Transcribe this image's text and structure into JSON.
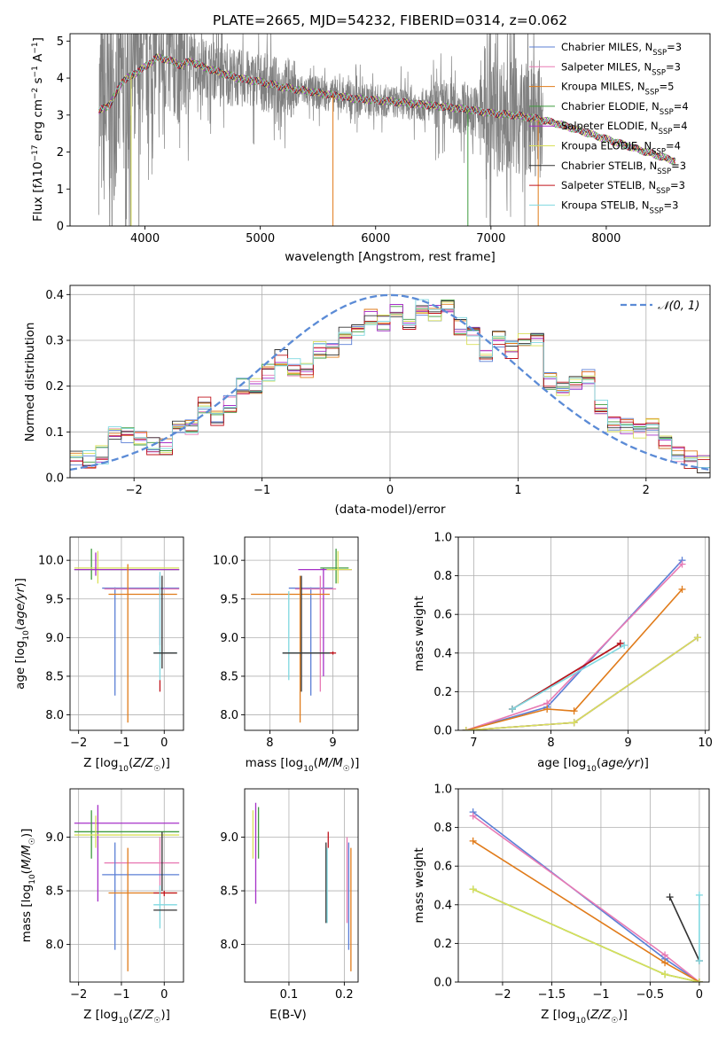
{
  "chart_data": [
    {
      "id": "spectrum",
      "type": "line",
      "title": "PLATE=2665, MJD=54232, FIBERID=0314, z=0.062",
      "xlabel": "wavelength [Angstrom, rest frame]",
      "ylabel": "Flux [f_λ 10^-17 erg cm^-2 s^-1 A^-1]",
      "xlim": [
        3350,
        8900
      ],
      "ylim": [
        0,
        5.2
      ],
      "xticks": [
        4000,
        5000,
        6000,
        7000,
        8000
      ],
      "yticks": [
        0,
        1,
        2,
        3,
        4,
        5
      ],
      "grid": false,
      "legend_position": "upper-right",
      "legend": [
        {
          "label": "Chabrier MILES, N",
          "sub": "SSP",
          "suffix": "=3",
          "color": "#5b7fd6"
        },
        {
          "label": "Salpeter MILES, N",
          "sub": "SSP",
          "suffix": "=3",
          "color": "#e87ab4"
        },
        {
          "label": "Kroupa MILES, N",
          "sub": "SSP",
          "suffix": "=5",
          "color": "#e07b1a"
        },
        {
          "label": "Chabrier ELODIE, N",
          "sub": "SSP",
          "suffix": "=4",
          "color": "#3e9b3e"
        },
        {
          "label": "Salpeter ELODIE, N",
          "sub": "SSP",
          "suffix": "=4",
          "color": "#a630c8"
        },
        {
          "label": "Kroupa ELODIE, N",
          "sub": "SSP",
          "suffix": "=4",
          "color": "#d9e05a"
        },
        {
          "label": "Chabrier STELIB, N",
          "sub": "SSP",
          "suffix": "=3",
          "color": "#333333"
        },
        {
          "label": "Salpeter STELIB, N",
          "sub": "SSP",
          "suffix": "=3",
          "color": "#c0141c"
        },
        {
          "label": "Kroupa STELIB, N",
          "sub": "SSP",
          "suffix": "=3",
          "color": "#7fd8e0"
        }
      ],
      "data_color": "#808080",
      "model_continuum": {
        "x": [
          3600,
          3700,
          3800,
          3900,
          4000,
          4100,
          4200,
          4300,
          4400,
          4500,
          4600,
          4800,
          5000,
          5200,
          5400,
          5600,
          5800,
          6000,
          6200,
          6400,
          6600,
          6800,
          7000,
          7200,
          7400,
          7600,
          7800,
          8000,
          8200,
          8400,
          8600
        ],
        "y": [
          3.1,
          3.3,
          3.9,
          4.1,
          4.3,
          4.55,
          4.5,
          4.35,
          4.45,
          4.3,
          4.2,
          4.0,
          3.9,
          3.75,
          3.65,
          3.55,
          3.45,
          3.4,
          3.35,
          3.28,
          3.22,
          3.15,
          3.05,
          3.0,
          2.9,
          2.75,
          2.55,
          2.35,
          2.15,
          1.95,
          1.75
        ]
      }
    },
    {
      "id": "residuals",
      "type": "line",
      "xlabel": "(data-model)/error",
      "ylabel": "Normed distribution",
      "xlim": [
        -2.5,
        2.5
      ],
      "ylim": [
        0,
        0.42
      ],
      "xticks": [
        -2,
        -1,
        0,
        1,
        2
      ],
      "yticks": [
        0.0,
        0.1,
        0.2,
        0.3,
        0.4
      ],
      "grid": true,
      "legend_position": "upper-right",
      "legend_label": "𝒩(0, 1)",
      "gauss_color": "#5b8bd6",
      "hist_x": [
        -2.5,
        -2.4,
        -2.3,
        -2.2,
        -2.1,
        -2.0,
        -1.9,
        -1.8,
        -1.7,
        -1.6,
        -1.5,
        -1.4,
        -1.3,
        -1.2,
        -1.1,
        -1.0,
        -0.9,
        -0.8,
        -0.7,
        -0.6,
        -0.5,
        -0.4,
        -0.3,
        -0.2,
        -0.1,
        0.0,
        0.1,
        0.2,
        0.3,
        0.4,
        0.5,
        0.6,
        0.7,
        0.8,
        0.9,
        1.0,
        1.1,
        1.2,
        1.3,
        1.4,
        1.5,
        1.6,
        1.7,
        1.8,
        1.9,
        2.0,
        2.1,
        2.2,
        2.3,
        2.4
      ],
      "hist_y": [
        0.04,
        0.04,
        0.05,
        0.1,
        0.09,
        0.09,
        0.07,
        0.07,
        0.11,
        0.11,
        0.16,
        0.13,
        0.16,
        0.2,
        0.2,
        0.23,
        0.26,
        0.24,
        0.23,
        0.28,
        0.28,
        0.31,
        0.33,
        0.35,
        0.34,
        0.36,
        0.34,
        0.37,
        0.36,
        0.38,
        0.33,
        0.31,
        0.27,
        0.3,
        0.28,
        0.3,
        0.3,
        0.21,
        0.19,
        0.21,
        0.22,
        0.15,
        0.12,
        0.11,
        0.1,
        0.11,
        0.08,
        0.05,
        0.04,
        0.03
      ]
    },
    {
      "id": "age_vs_Z",
      "type": "scatter",
      "xlabel": "Z [log10(Z/Z☉)]",
      "ylabel": "age  [log10(age/yr)]",
      "xlim": [
        -2.2,
        0.45
      ],
      "ylim": [
        7.8,
        10.3
      ],
      "xticks": [
        -2,
        -1,
        0
      ],
      "yticks": [
        8.0,
        8.5,
        9.0,
        9.5,
        10.0
      ],
      "grid": true
    },
    {
      "id": "age_vs_mass",
      "type": "scatter",
      "xlabel": "mass [log10(M/M☉)]",
      "ylabel": "",
      "xlim": [
        7.6,
        9.4
      ],
      "ylim": [
        7.8,
        10.3
      ],
      "xticks": [
        8,
        9
      ],
      "yticks": [
        8.0,
        8.5,
        9.0,
        9.5,
        10.0
      ],
      "grid": true
    },
    {
      "id": "massweight_vs_age",
      "type": "line",
      "xlabel": "age  [log10(age/yr)]",
      "ylabel": "mass weight",
      "xlim": [
        6.8,
        10.05
      ],
      "ylim": [
        0,
        1.0
      ],
      "xticks": [
        7,
        8,
        9,
        10
      ],
      "yticks": [
        0.0,
        0.2,
        0.4,
        0.6,
        0.8,
        1.0
      ],
      "grid": true,
      "series": [
        {
          "color": "#5b7fd6",
          "x": [
            6.9,
            7.95,
            9.7
          ],
          "y": [
            0.0,
            0.12,
            0.88
          ]
        },
        {
          "color": "#e87ab4",
          "x": [
            6.9,
            7.95,
            9.7
          ],
          "y": [
            0.0,
            0.14,
            0.86
          ]
        },
        {
          "color": "#e07b1a",
          "x": [
            6.9,
            7.95,
            8.3,
            9.7
          ],
          "y": [
            0.0,
            0.11,
            0.1,
            0.73
          ]
        },
        {
          "color": "#3e9b3e",
          "x": [
            6.9,
            8.3,
            9.9
          ],
          "y": [
            0.0,
            0.04,
            0.48
          ]
        },
        {
          "color": "#a630c8",
          "x": [
            6.9,
            8.3,
            9.9
          ],
          "y": [
            0.0,
            0.04,
            0.48
          ]
        },
        {
          "color": "#d9e05a",
          "x": [
            6.9,
            8.3,
            9.9
          ],
          "y": [
            0.0,
            0.04,
            0.48
          ]
        },
        {
          "color": "#333333",
          "x": [
            7.5,
            8.9
          ],
          "y": [
            0.11,
            0.45
          ]
        },
        {
          "color": "#c0141c",
          "x": [
            7.5,
            8.9
          ],
          "y": [
            0.11,
            0.45
          ]
        },
        {
          "color": "#7fd8e0",
          "x": [
            7.5,
            8.95
          ],
          "y": [
            0.11,
            0.44
          ]
        }
      ]
    },
    {
      "id": "mass_vs_Z",
      "type": "scatter",
      "xlabel": "Z [log10(Z/Z☉)]",
      "ylabel": "mass [log10(M/M☉)]",
      "xlim": [
        -2.2,
        0.45
      ],
      "ylim": [
        7.65,
        9.45
      ],
      "xticks": [
        -2,
        -1,
        0
      ],
      "yticks": [
        8.0,
        8.5,
        9.0
      ],
      "grid": true
    },
    {
      "id": "mass_vs_ebv",
      "type": "scatter",
      "xlabel": "E(B-V)",
      "ylabel": "",
      "xlim": [
        0.02,
        0.225
      ],
      "ylim": [
        7.65,
        9.45
      ],
      "xticks": [
        0.1,
        0.2
      ],
      "yticks": [
        8.0,
        8.5,
        9.0
      ],
      "grid": true
    },
    {
      "id": "massweight_vs_Z",
      "type": "line",
      "xlabel": "Z [log10(Z/Z☉)]",
      "ylabel": "mass weight",
      "xlim": [
        -2.45,
        0.1
      ],
      "ylim": [
        0,
        1.0
      ],
      "xticks": [
        -2.0,
        -1.5,
        -1.0,
        -0.5,
        0.0
      ],
      "yticks": [
        0.0,
        0.2,
        0.4,
        0.6,
        0.8,
        1.0
      ],
      "grid": true,
      "series": [
        {
          "color": "#5b7fd6",
          "x": [
            -2.3,
            -0.35,
            0.0
          ],
          "y": [
            0.88,
            0.12,
            0.0
          ]
        },
        {
          "color": "#e87ab4",
          "x": [
            -2.3,
            -0.35,
            0.0
          ],
          "y": [
            0.86,
            0.14,
            0.0
          ]
        },
        {
          "color": "#e07b1a",
          "x": [
            -2.3,
            -0.35,
            0.0
          ],
          "y": [
            0.73,
            0.1,
            0.0
          ]
        },
        {
          "color": "#3e9b3e",
          "x": [
            -2.3,
            -0.35,
            0.0
          ],
          "y": [
            0.48,
            0.04,
            0.0
          ]
        },
        {
          "color": "#d9e05a",
          "x": [
            -2.3,
            -0.35,
            0.0
          ],
          "y": [
            0.48,
            0.04,
            0.0
          ]
        },
        {
          "color": "#333333",
          "x": [
            -0.3,
            0.0
          ],
          "y": [
            0.44,
            0.11
          ]
        },
        {
          "color": "#7fd8e0",
          "x": [
            0.0,
            0.0
          ],
          "y": [
            0.45,
            0.11
          ]
        }
      ]
    }
  ]
}
